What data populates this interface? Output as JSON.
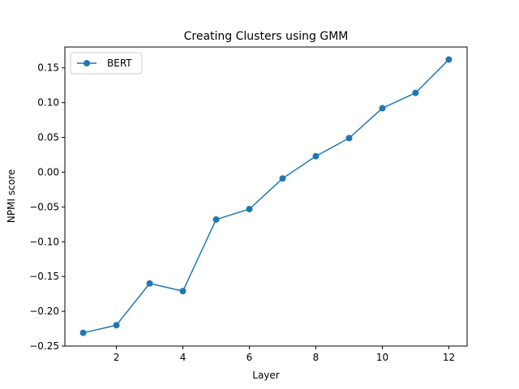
{
  "chart_data": {
    "type": "line",
    "title": "Creating Clusters using GMM",
    "xlabel": "Layer",
    "ylabel": "NPMI score",
    "xlim": [
      0.45,
      12.55
    ],
    "ylim": [
      -0.25,
      0.18
    ],
    "x_ticks": [
      2,
      4,
      6,
      8,
      10,
      12
    ],
    "y_ticks": [
      -0.25,
      -0.2,
      -0.15,
      -0.1,
      -0.05,
      0.0,
      0.05,
      0.1,
      0.15
    ],
    "x_tick_labels": [
      "2",
      "4",
      "6",
      "8",
      "10",
      "12"
    ],
    "y_tick_labels": [
      "−0.25",
      "−0.20",
      "−0.15",
      "−0.10",
      "−0.05",
      "0.00",
      "0.05",
      "0.10",
      "0.15"
    ],
    "grid": false,
    "legend_position": "top-left",
    "series": [
      {
        "name": "BERT",
        "color": "#1f77b4",
        "marker": "circle",
        "x": [
          1,
          2,
          3,
          4,
          5,
          6,
          7,
          8,
          9,
          10,
          11,
          12
        ],
        "y": [
          -0.231,
          -0.22,
          -0.16,
          -0.171,
          -0.068,
          -0.053,
          -0.009,
          0.023,
          0.049,
          0.092,
          0.114,
          0.162
        ]
      }
    ]
  }
}
